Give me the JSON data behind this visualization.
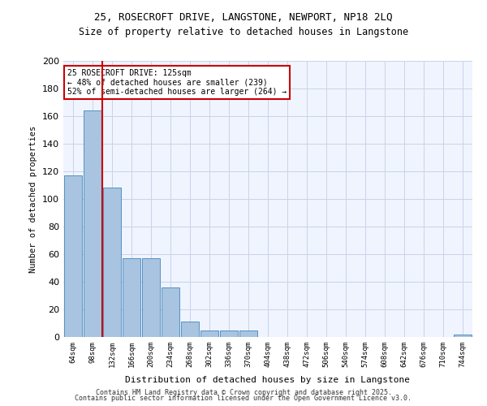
{
  "title_line1": "25, ROSECROFT DRIVE, LANGSTONE, NEWPORT, NP18 2LQ",
  "title_line2": "Size of property relative to detached houses in Langstone",
  "xlabel": "Distribution of detached houses by size in Langstone",
  "ylabel": "Number of detached properties",
  "categories": [
    "64sqm",
    "98sqm",
    "132sqm",
    "166sqm",
    "200sqm",
    "234sqm",
    "268sqm",
    "302sqm",
    "336sqm",
    "370sqm",
    "404sqm",
    "438sqm",
    "472sqm",
    "506sqm",
    "540sqm",
    "574sqm",
    "608sqm",
    "642sqm",
    "676sqm",
    "710sqm",
    "744sqm"
  ],
  "values": [
    117,
    164,
    108,
    57,
    57,
    36,
    11,
    5,
    5,
    5,
    0,
    0,
    0,
    0,
    0,
    0,
    0,
    0,
    0,
    0,
    2
  ],
  "bar_color": "#a8c4e0",
  "bar_edge_color": "#5590c4",
  "bg_color": "#f0f4ff",
  "grid_color": "#c8d4e8",
  "vline_x": 1.5,
  "vline_color": "#cc0000",
  "annotation_text": "25 ROSECROFT DRIVE: 125sqm\n← 48% of detached houses are smaller (239)\n52% of semi-detached houses are larger (264) →",
  "annotation_box_color": "#cc0000",
  "footer_line1": "Contains HM Land Registry data © Crown copyright and database right 2025.",
  "footer_line2": "Contains public sector information licensed under the Open Government Licence v3.0.",
  "ylim": [
    0,
    200
  ],
  "yticks": [
    0,
    20,
    40,
    60,
    80,
    100,
    120,
    140,
    160,
    180,
    200
  ]
}
